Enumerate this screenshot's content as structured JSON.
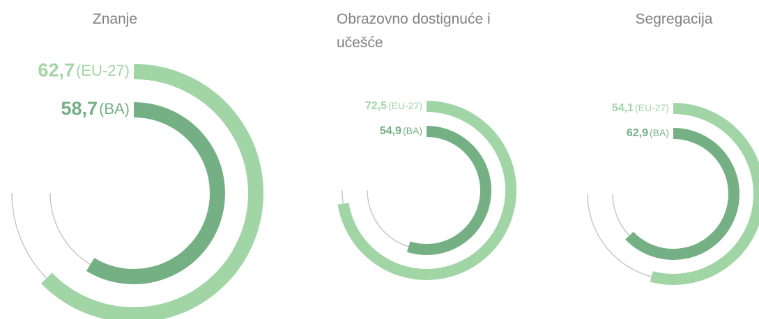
{
  "chart_data": [
    {
      "type": "radial-bar",
      "title": "Znanje",
      "ylim": [
        0,
        100
      ],
      "series": [
        {
          "name": "(EU-27)",
          "color": "#a1d5a6",
          "values": [
            62.7
          ],
          "value_labels": [
            "62,7"
          ]
        },
        {
          "name": "(BA)",
          "color": "#74b084",
          "values": [
            58.7
          ],
          "value_labels": [
            "58,7"
          ]
        }
      ]
    },
    {
      "type": "radial-bar",
      "title": "Obrazovno dostignuće i učešće",
      "ylim": [
        0,
        100
      ],
      "series": [
        {
          "name": "(EU-27)",
          "color": "#a1d5a6",
          "values": [
            72.5
          ],
          "value_labels": [
            "72,5"
          ]
        },
        {
          "name": "(BA)",
          "color": "#74b084",
          "values": [
            54.9
          ],
          "value_labels": [
            "54,9"
          ]
        }
      ]
    },
    {
      "type": "radial-bar",
      "title": "Segregacija",
      "ylim": [
        0,
        100
      ],
      "series": [
        {
          "name": "(EU-27)",
          "color": "#a1d5a6",
          "values": [
            54.1
          ],
          "value_labels": [
            "54,1"
          ]
        },
        {
          "name": "(BA)",
          "color": "#74b084",
          "values": [
            62.9
          ],
          "value_labels": [
            "62,9"
          ]
        }
      ]
    }
  ]
}
